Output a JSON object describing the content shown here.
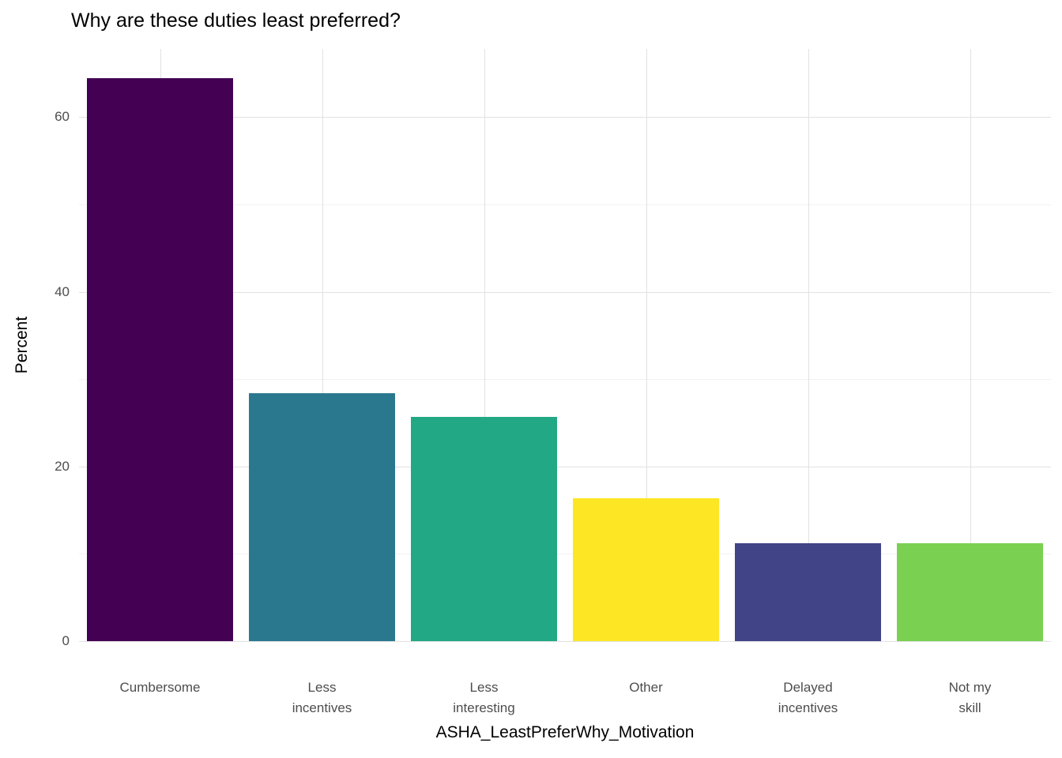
{
  "chart_data": {
    "type": "bar",
    "title": "Why are these duties least preferred?",
    "xlabel": "ASHA_LeastPreferWhy_Motivation",
    "ylabel": "Percent",
    "categories": [
      "Cumbersome",
      "Less\nincentives",
      "Less\ninteresting",
      "Other",
      "Delayed\nincentives",
      "Not my\nskill"
    ],
    "values": [
      64.5,
      28.4,
      25.7,
      16.4,
      11.2,
      11.2
    ],
    "bar_colors": [
      "#440154",
      "#2A788E",
      "#22A884",
      "#FDE725",
      "#414487",
      "#7AD151"
    ],
    "yticks_major": [
      0,
      20,
      40,
      60
    ],
    "yticks_minor": [
      10,
      30,
      50
    ],
    "ylim": [
      0,
      67.8
    ],
    "bar_width_fraction": 0.9,
    "grid": "on",
    "legend": "none",
    "panel_background": "#ffffff",
    "tick_label_color": "#4d4d4d"
  }
}
